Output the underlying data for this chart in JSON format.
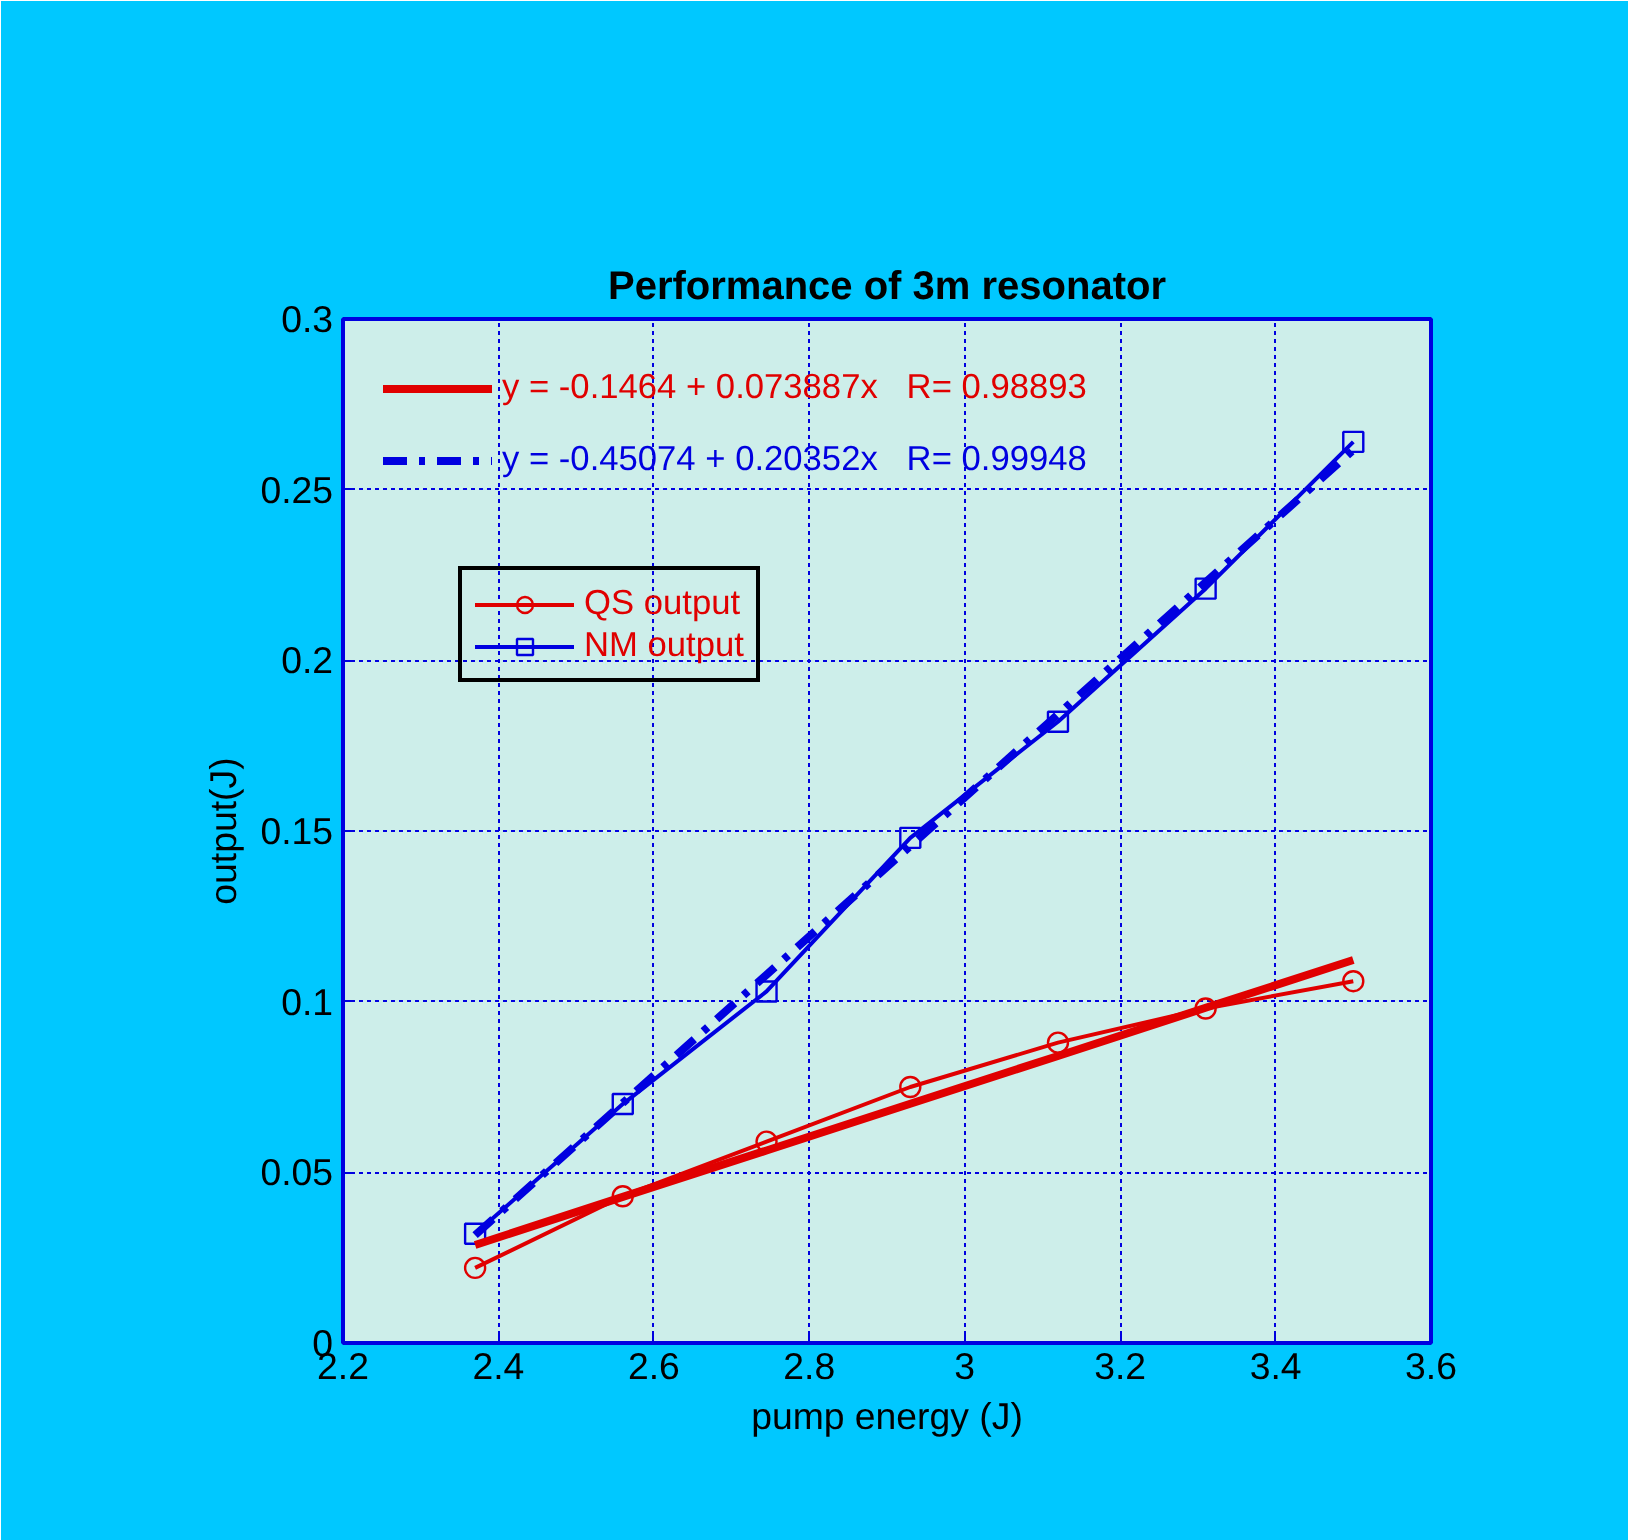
{
  "chart_data": {
    "type": "line",
    "title": "Performance of 3m resonator",
    "xlabel": "pump energy (J)",
    "ylabel": "output(J)",
    "x": [
      2.37,
      2.56,
      2.745,
      2.93,
      3.12,
      3.31,
      3.5
    ],
    "series": [
      {
        "name": "QS output",
        "color": "#e00000",
        "marker": "circle",
        "line_style": "solid",
        "values": [
          0.022,
          0.043,
          0.059,
          0.075,
          0.088,
          0.098,
          0.106
        ]
      },
      {
        "name": "NM output",
        "color": "#0000e0",
        "marker": "square",
        "line_style": "solid",
        "values": [
          0.032,
          0.07,
          0.103,
          0.148,
          0.182,
          0.221,
          0.264
        ]
      },
      {
        "name": "y = -0.1464 + 0.073887x   R= 0.98893",
        "color": "#e00000",
        "marker": "none",
        "line_style": "solid",
        "values": [
          0.0287,
          0.0428,
          0.0564,
          0.0701,
          0.0841,
          0.0982,
          0.1122
        ]
      },
      {
        "name": "y = -0.45074 + 0.20352x   R= 0.99948",
        "color": "#0000e0",
        "marker": "none",
        "line_style": "dashed",
        "values": [
          0.0316,
          0.0703,
          0.1079,
          0.1456,
          0.1842,
          0.2229,
          0.2616
        ]
      }
    ],
    "xlim": [
      2.2,
      3.6
    ],
    "xticks": [
      2.2,
      2.4,
      2.6,
      2.8,
      3,
      3.2,
      3.4,
      3.6
    ],
    "ylim": [
      0,
      0.3
    ],
    "yticks": [
      0,
      0.05,
      0.1,
      0.15,
      0.2,
      0.25,
      0.3
    ],
    "grid": true,
    "legend": "top left"
  }
}
